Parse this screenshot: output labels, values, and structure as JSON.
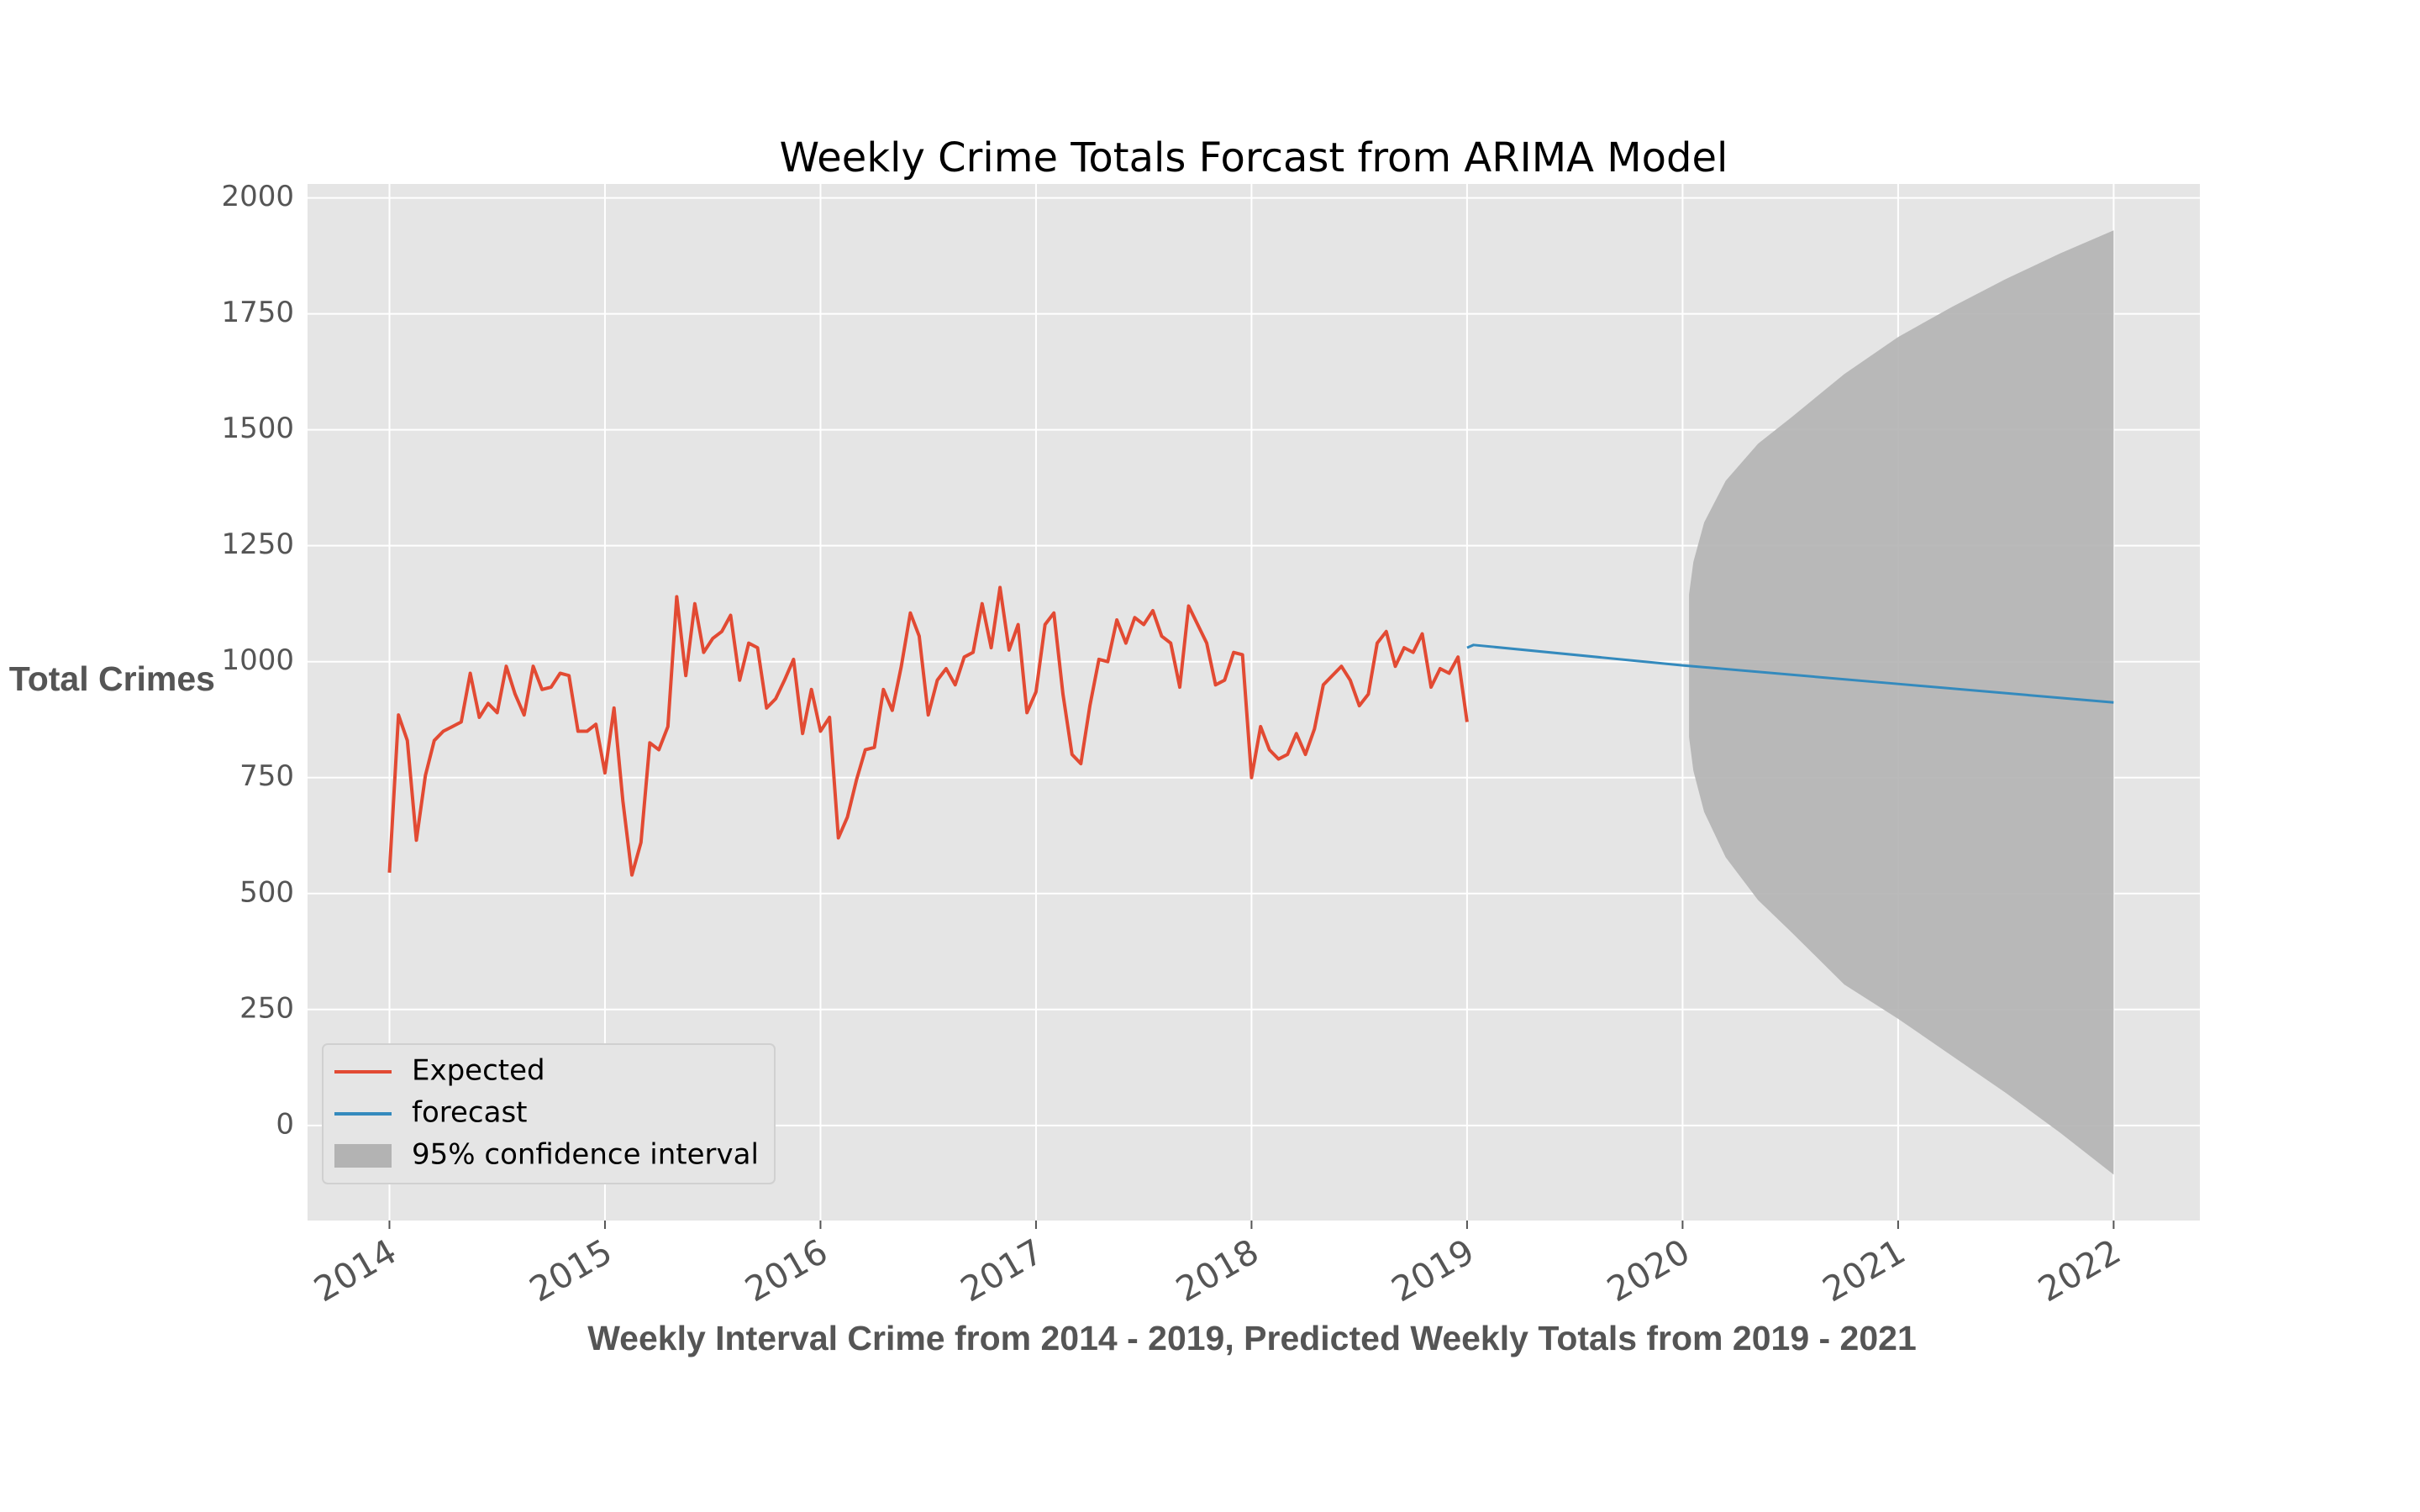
{
  "chart_data": {
    "type": "line",
    "title": "Weekly Crime Totals Forcast from ARIMA Model",
    "x_label": "Weekly Interval Crime from 2014 - 2019, Predicted Weekly Totals from 2019 - 2021",
    "y_label": "Total Crimes",
    "xlim": [
      2013.62,
      2022.4
    ],
    "ylim": [
      -205,
      2030
    ],
    "xticks": [
      2014,
      2015,
      2016,
      2017,
      2018,
      2019,
      2020,
      2021,
      2022
    ],
    "yticks": [
      0,
      250,
      500,
      750,
      1000,
      1250,
      1500,
      1750,
      2000
    ],
    "grid": true,
    "legend": "lower left",
    "series": [
      {
        "name": "Expected",
        "color": "#e24a33",
        "x": [
          2014,
          2014.042,
          2014.083,
          2014.125,
          2014.167,
          2014.208,
          2014.25,
          2014.292,
          2014.333,
          2014.375,
          2014.417,
          2014.458,
          2014.5,
          2014.542,
          2014.583,
          2014.625,
          2014.667,
          2014.708,
          2014.75,
          2014.792,
          2014.833,
          2014.875,
          2014.917,
          2014.958,
          2015,
          2015.042,
          2015.083,
          2015.125,
          2015.167,
          2015.208,
          2015.25,
          2015.292,
          2015.333,
          2015.375,
          2015.417,
          2015.458,
          2015.5,
          2015.542,
          2015.583,
          2015.625,
          2015.667,
          2015.708,
          2015.75,
          2015.792,
          2015.833,
          2015.875,
          2015.917,
          2015.958,
          2016,
          2016.042,
          2016.083,
          2016.125,
          2016.167,
          2016.208,
          2016.25,
          2016.292,
          2016.333,
          2016.375,
          2016.417,
          2016.458,
          2016.5,
          2016.542,
          2016.583,
          2016.625,
          2016.667,
          2016.708,
          2016.75,
          2016.792,
          2016.833,
          2016.875,
          2016.917,
          2016.958,
          2017,
          2017.042,
          2017.083,
          2017.125,
          2017.167,
          2017.208,
          2017.25,
          2017.292,
          2017.333,
          2017.375,
          2017.417,
          2017.458,
          2017.5,
          2017.542,
          2017.583,
          2017.625,
          2017.667,
          2017.708,
          2017.75,
          2017.792,
          2017.833,
          2017.875,
          2017.917,
          2017.958,
          2018,
          2018.042,
          2018.083,
          2018.125,
          2018.167,
          2018.208,
          2018.25,
          2018.292,
          2018.333,
          2018.375,
          2018.417,
          2018.458,
          2018.5,
          2018.542,
          2018.583,
          2018.625,
          2018.667,
          2018.708,
          2018.75,
          2018.792,
          2018.833,
          2018.875,
          2018.917,
          2018.958,
          2019
        ],
        "values": [
          545,
          885,
          830,
          615,
          755,
          830,
          850,
          860,
          870,
          975,
          880,
          910,
          890,
          990,
          930,
          885,
          990,
          940,
          945,
          975,
          970,
          850,
          850,
          865,
          760,
          900,
          700,
          540,
          610,
          825,
          810,
          860,
          1140,
          970,
          1125,
          1020,
          1050,
          1065,
          1100,
          960,
          1040,
          1030,
          900,
          920,
          960,
          1005,
          845,
          940,
          850,
          880,
          620,
          665,
          745,
          810,
          815,
          940,
          895,
          990,
          1105,
          1055,
          885,
          960,
          985,
          950,
          1010,
          1020,
          1125,
          1030,
          1160,
          1025,
          1080,
          890,
          935,
          1080,
          1105,
          930,
          800,
          780,
          905,
          1005,
          1000,
          1090,
          1040,
          1095,
          1080,
          1110,
          1055,
          1040,
          945,
          1120,
          1080,
          1040,
          950,
          960,
          1020,
          1015,
          750,
          860,
          810,
          790,
          800,
          845,
          800,
          855,
          950,
          970,
          990,
          960,
          905,
          930,
          1040,
          1065,
          990,
          1030,
          1020,
          1060,
          945,
          985,
          975,
          1010,
          870
        ]
      },
      {
        "name": "forecast",
        "color": "#348abd",
        "x": [
          2019,
          2019.03,
          2020,
          2021,
          2022
        ],
        "values": [
          1030,
          1036,
          992,
          952,
          912
        ]
      }
    ],
    "interval": {
      "name": "95% confidence interval",
      "color": "#b3b3b3",
      "x": [
        2020.03,
        2020.05,
        2020.1,
        2020.2,
        2020.35,
        2020.5,
        2020.75,
        2021,
        2021.25,
        2021.5,
        2021.75,
        2022
      ],
      "lower": [
        837,
        765,
        676,
        578,
        486,
        419,
        304,
        230,
        150,
        70,
        -15,
        -106
      ],
      "upper": [
        1145,
        1215,
        1300,
        1390,
        1470,
        1525,
        1620,
        1700,
        1765,
        1825,
        1880,
        1930
      ]
    }
  }
}
